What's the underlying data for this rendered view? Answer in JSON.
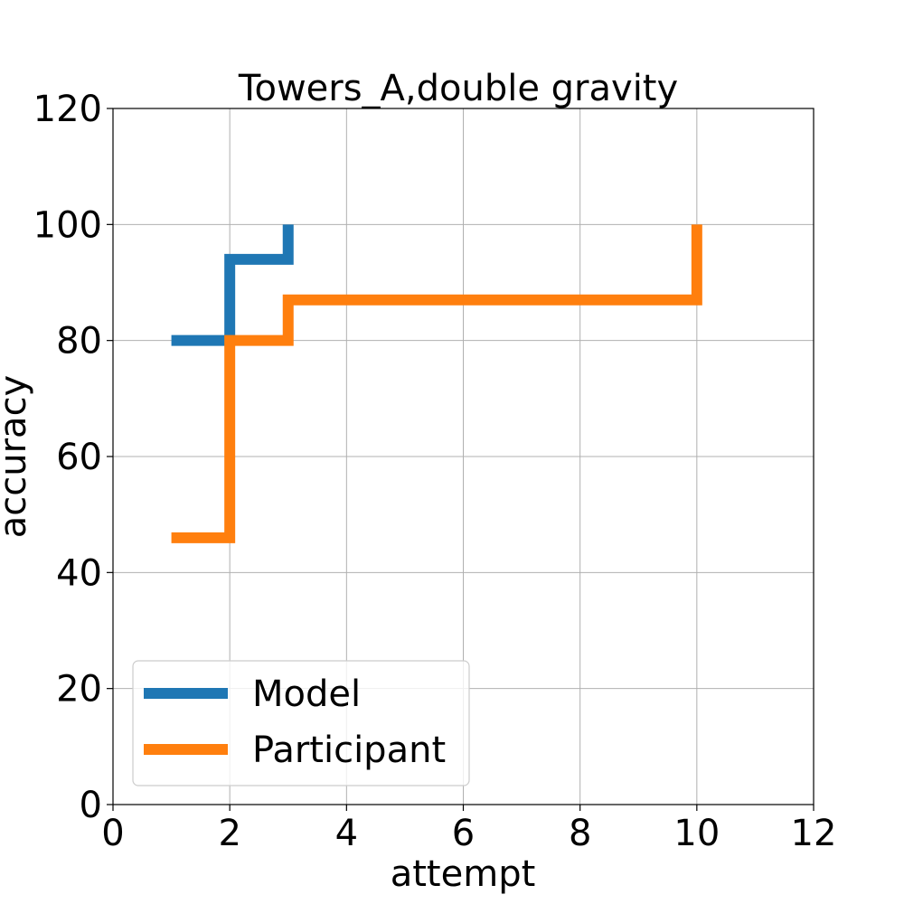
{
  "chart_data": {
    "type": "line",
    "title": "Towers_A,double gravity",
    "xlabel": "attempt",
    "ylabel": "accuracy",
    "xlim": [
      0,
      12
    ],
    "ylim": [
      0,
      120
    ],
    "xticks": [
      0,
      2,
      4,
      6,
      8,
      10,
      12
    ],
    "yticks": [
      0,
      20,
      40,
      60,
      80,
      100,
      120
    ],
    "xtick_labels": [
      "0",
      "2",
      "4",
      "6",
      "8",
      "10",
      "12"
    ],
    "ytick_labels": [
      "0",
      "20",
      "40",
      "60",
      "80",
      "100",
      "120"
    ],
    "grid": true,
    "legend_position": "lower-left",
    "step_style": "post",
    "series": [
      {
        "name": "Model",
        "color": "#1f77b4",
        "x": [
          1,
          2,
          3
        ],
        "y": [
          80,
          94,
          100
        ]
      },
      {
        "name": "Participant",
        "color": "#ff7f0e",
        "x": [
          1,
          2,
          3,
          10
        ],
        "y": [
          46,
          80,
          87,
          100
        ]
      }
    ]
  }
}
